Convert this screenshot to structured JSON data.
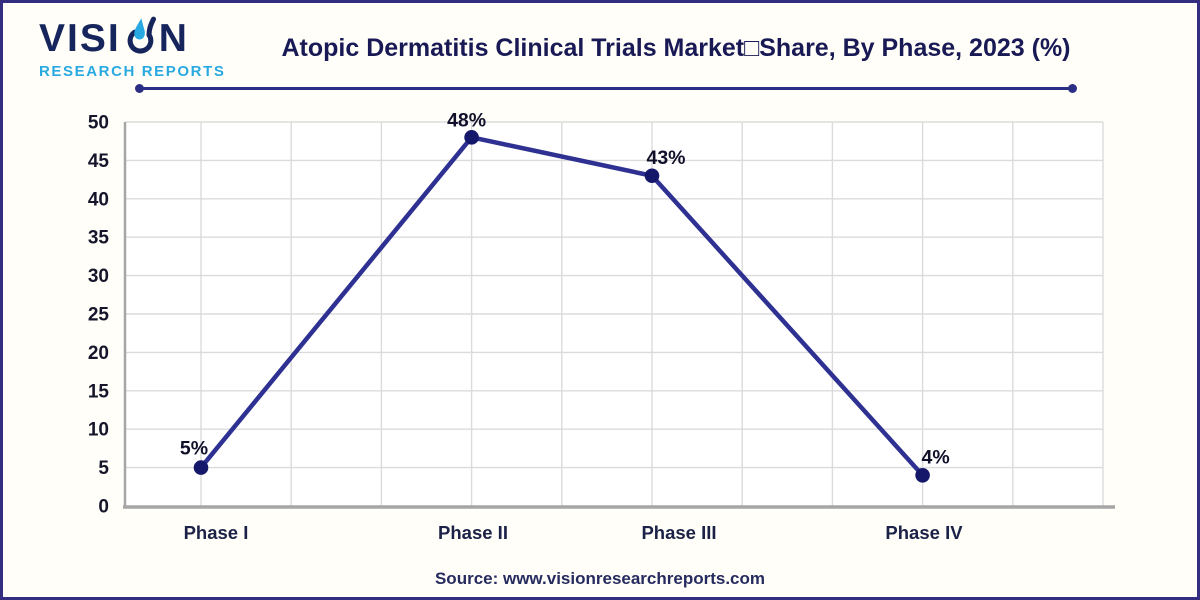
{
  "logo": {
    "name_pre": "VISI",
    "name_post": "N",
    "tagline": "RESEARCH REPORTS",
    "navy": "#16255C",
    "blue": "#29A9E1"
  },
  "header": {
    "title": "Atopic Dermatitis Clinical Trials Market□Share, By Phase, 2023 (%)"
  },
  "footer": {
    "source": "Source: www.visionresearchreports.com"
  },
  "chart_data": {
    "type": "line",
    "title": "Atopic Dermatitis Clinical Trials Market Share, By Phase, 2023 (%)",
    "categories": [
      "Phase I",
      "Phase II",
      "Phase III",
      "Phase IV"
    ],
    "values": [
      5,
      48,
      43,
      4
    ],
    "point_labels": [
      "5%",
      "48%",
      "43%",
      "4%"
    ],
    "xlabel": "",
    "ylabel": "",
    "ylim": [
      0,
      50
    ],
    "yticks": [
      0,
      5,
      10,
      15,
      20,
      25,
      30,
      35,
      40,
      45,
      50
    ],
    "grid": true,
    "legend": false,
    "line_color": "#2E3192",
    "marker_color": "#15186A",
    "grid_color": "#DBDBDB",
    "axis_color": "#A6A6A6",
    "tick_label_color": "#15152B",
    "category_label_color": "#1C2247",
    "point_label_color": "#10102A"
  }
}
